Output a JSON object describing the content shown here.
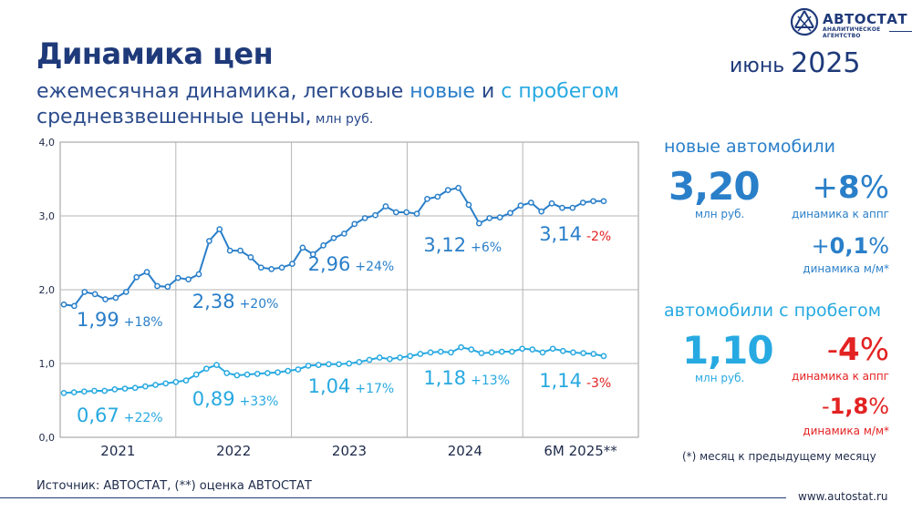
{
  "header": {
    "title": "Динамика цен",
    "subtitle_part1": "ежемесячная динамика, легковые ",
    "subtitle_new": "новые",
    "subtitle_and": " и ",
    "subtitle_used": "с пробегом",
    "subtitle2": "средневзвешенные цены,",
    "subtitle2_unit": " млн руб.",
    "period_month": "июнь ",
    "period_year": "2025"
  },
  "logo": {
    "name": "АВТОСТАТ",
    "tagline": "АНАЛИТИЧЕСКОЕ АГЕНТСТВО"
  },
  "colors": {
    "new": "#2a7fc9",
    "used": "#27a9e1",
    "negative": "#e32222",
    "dark": "#1f3a7a"
  },
  "chart_data": {
    "type": "line",
    "x_labels": [
      "2021",
      "2022",
      "2023",
      "2024",
      "6М 2025**"
    ],
    "y_ticks": [
      "0,0",
      "1,0",
      "2,0",
      "3,0",
      "4,0"
    ],
    "ylim": [
      0,
      4
    ],
    "grid": true,
    "series": [
      {
        "key": "new",
        "values": [
          1.8,
          1.78,
          1.97,
          1.94,
          1.87,
          1.89,
          1.97,
          2.17,
          2.24,
          2.05,
          2.04,
          2.16,
          2.14,
          2.21,
          2.66,
          2.82,
          2.53,
          2.53,
          2.44,
          2.3,
          2.28,
          2.3,
          2.35,
          2.57,
          2.48,
          2.6,
          2.7,
          2.76,
          2.89,
          2.97,
          3.01,
          3.13,
          3.05,
          3.05,
          3.03,
          3.23,
          3.26,
          3.35,
          3.38,
          3.15,
          2.9,
          2.97,
          2.98,
          3.04,
          3.14,
          3.18,
          3.06,
          3.17,
          3.11,
          3.11,
          3.18,
          3.2,
          3.2
        ],
        "annotations": [
          {
            "value": "1,99",
            "change": "+18%"
          },
          {
            "value": "2,38",
            "change": "+20%"
          },
          {
            "value": "2,96",
            "change": "+24%"
          },
          {
            "value": "3,12",
            "change": "+6%"
          },
          {
            "value": "3,14",
            "change": "-2%"
          }
        ]
      },
      {
        "key": "used",
        "values": [
          0.6,
          0.61,
          0.62,
          0.63,
          0.63,
          0.65,
          0.66,
          0.67,
          0.69,
          0.71,
          0.73,
          0.75,
          0.77,
          0.85,
          0.93,
          0.98,
          0.87,
          0.84,
          0.85,
          0.86,
          0.87,
          0.88,
          0.9,
          0.92,
          0.97,
          0.98,
          0.99,
          0.99,
          1.0,
          1.02,
          1.05,
          1.08,
          1.06,
          1.08,
          1.1,
          1.13,
          1.15,
          1.16,
          1.15,
          1.22,
          1.19,
          1.14,
          1.15,
          1.16,
          1.16,
          1.2,
          1.19,
          1.15,
          1.2,
          1.17,
          1.15,
          1.14,
          1.13,
          1.1
        ],
        "annotations": [
          {
            "value": "0,67",
            "change": "+22%"
          },
          {
            "value": "0,89",
            "change": "+33%"
          },
          {
            "value": "1,04",
            "change": "+17%"
          },
          {
            "value": "1,18",
            "change": "+13%"
          },
          {
            "value": "1,14",
            "change": "-3%"
          }
        ]
      }
    ]
  },
  "panel_new": {
    "heading": "новые автомобили",
    "price": "3,20",
    "price_unit": "млн руб.",
    "yoy_sign": "+",
    "yoy_value": "8",
    "yoy_sym": "%",
    "yoy_label": "динамика к аппг",
    "mom_sign": "+",
    "mom_value": "0,1",
    "mom_sym": "%",
    "mom_label": "динамика м/м*"
  },
  "panel_used": {
    "heading": "автомобили с пробегом",
    "price": "1,10",
    "price_unit": "млн руб.",
    "yoy_sign": "-",
    "yoy_value": "4",
    "yoy_sym": "%",
    "yoy_label": "динамика к аппг",
    "mom_sign": "-",
    "mom_value": "1,8",
    "mom_sym": "%",
    "mom_label": "динамика м/м*"
  },
  "footnote": "(*) месяц к предыдущему месяцу",
  "source": "Источник: АВТОСТАТ, (**) оценка АВТОСТАТ",
  "website": "www.autostat.ru"
}
